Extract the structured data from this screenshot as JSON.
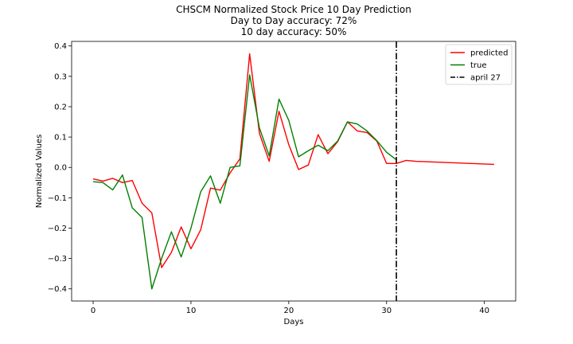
{
  "chart_data": {
    "type": "line",
    "title_lines": [
      "CHSCM Normalized Stock Price 10 Day Prediction",
      "Day to Day accuracy: 72%",
      "10 day accuracy: 50%"
    ],
    "xlabel": "Days",
    "ylabel": "Normalized Values",
    "xlim": [
      -2.2,
      43.2
    ],
    "ylim": [
      -0.44,
      0.415
    ],
    "xticks": [
      0,
      10,
      20,
      30,
      40
    ],
    "yticks": [
      -0.4,
      -0.3,
      -0.2,
      -0.1,
      0.0,
      0.1,
      0.2,
      0.3,
      0.4
    ],
    "ytick_labels": [
      "−0.4",
      "−0.3",
      "−0.2",
      "−0.1",
      "0.0",
      "0.1",
      "0.2",
      "0.3",
      "0.4"
    ],
    "legend_position": "upper right",
    "series": [
      {
        "name": "predicted",
        "color": "#ff0000",
        "style": "solid",
        "x": [
          0,
          1,
          2,
          3,
          4,
          5,
          6,
          7,
          8,
          9,
          10,
          11,
          12,
          13,
          14,
          15,
          16,
          17,
          18,
          19,
          20,
          21,
          22,
          23,
          24,
          25,
          26,
          27,
          28,
          29,
          30,
          31,
          32,
          33,
          41
        ],
        "y": [
          -0.038,
          -0.045,
          -0.036,
          -0.05,
          -0.043,
          -0.118,
          -0.15,
          -0.33,
          -0.28,
          -0.196,
          -0.268,
          -0.205,
          -0.068,
          -0.075,
          -0.018,
          0.028,
          0.374,
          0.112,
          0.02,
          0.185,
          0.075,
          -0.007,
          0.008,
          0.108,
          0.045,
          0.085,
          0.15,
          0.12,
          0.115,
          0.087,
          0.013,
          0.013,
          0.023,
          0.02,
          0.01
        ]
      },
      {
        "name": "true",
        "color": "#008000",
        "style": "solid",
        "x": [
          0,
          1,
          2,
          3,
          4,
          5,
          6,
          7,
          8,
          9,
          10,
          11,
          12,
          13,
          14,
          15,
          16,
          17,
          18,
          19,
          20,
          21,
          22,
          23,
          24,
          25,
          26,
          27,
          28,
          29,
          30,
          31
        ],
        "y": [
          -0.047,
          -0.05,
          -0.074,
          -0.025,
          -0.133,
          -0.165,
          -0.4,
          -0.3,
          -0.212,
          -0.295,
          -0.2,
          -0.08,
          -0.028,
          -0.118,
          0.0,
          0.005,
          0.305,
          0.13,
          0.038,
          0.225,
          0.155,
          0.035,
          0.055,
          0.073,
          0.055,
          0.087,
          0.15,
          0.143,
          0.12,
          0.088,
          0.05,
          0.025
        ]
      },
      {
        "name": "april 27",
        "color": "#000000",
        "style": "dashdot",
        "vertical_x": 31
      }
    ]
  }
}
